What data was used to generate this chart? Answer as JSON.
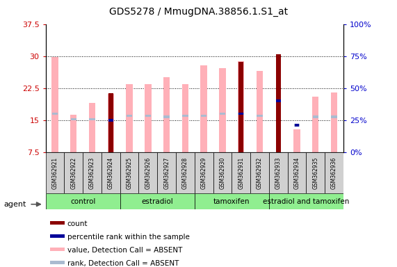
{
  "title": "GDS5278 / MmugDNA.38856.1.S1_at",
  "samples": [
    "GSM362921",
    "GSM362922",
    "GSM362923",
    "GSM362924",
    "GSM362925",
    "GSM362926",
    "GSM362927",
    "GSM362928",
    "GSM362929",
    "GSM362930",
    "GSM362931",
    "GSM362932",
    "GSM362933",
    "GSM362934",
    "GSM362935",
    "GSM362936"
  ],
  "group_labels": [
    "control",
    "estradiol",
    "tamoxifen",
    "estradiol and tamoxifen"
  ],
  "group_starts": [
    0,
    4,
    8,
    12
  ],
  "group_ends": [
    3,
    7,
    11,
    15
  ],
  "group_color": "#90EE90",
  "value_bars": [
    29.8,
    16.2,
    19.0,
    21.2,
    23.5,
    23.5,
    25.0,
    23.5,
    27.8,
    27.1,
    28.8,
    26.6,
    99,
    12.8,
    20.5,
    21.5
  ],
  "value_bars_present": [
    false,
    false,
    false,
    false,
    false,
    false,
    false,
    false,
    false,
    false,
    false,
    false,
    false,
    true,
    false,
    false
  ],
  "count_bars": [
    0,
    0,
    0,
    21.3,
    0,
    0,
    0,
    0,
    0,
    0,
    28.7,
    0,
    30.5,
    0,
    0,
    0
  ],
  "rank_bars": [
    16.5,
    15.2,
    15.2,
    99,
    16.0,
    16.0,
    15.8,
    16.0,
    16.0,
    16.5,
    16.5,
    16.0,
    99,
    13.8,
    15.8,
    15.8
  ],
  "rank_present": [
    true,
    true,
    true,
    false,
    true,
    true,
    true,
    true,
    true,
    true,
    true,
    true,
    false,
    true,
    true,
    true
  ],
  "percentile_bars": [
    0,
    0,
    0,
    15.0,
    0,
    0,
    0,
    0,
    0,
    0,
    16.5,
    0,
    19.5,
    13.8,
    0,
    0
  ],
  "ylim_left": [
    7.5,
    37.5
  ],
  "ylim_right": [
    0,
    100
  ],
  "left_ticks": [
    7.5,
    15.0,
    22.5,
    30.0,
    37.5
  ],
  "right_ticks": [
    0,
    25,
    50,
    75,
    100
  ],
  "value_color": "#FFB0B8",
  "count_color": "#8B0000",
  "rank_color": "#AABBD0",
  "percentile_color": "#000099",
  "bg_color": "#FFFFFF",
  "left_label_color": "#CC0000",
  "right_label_color": "#0000CC",
  "sample_box_color": "#D0D0D0",
  "legend_items": [
    {
      "color": "#8B0000",
      "label": "count"
    },
    {
      "color": "#000099",
      "label": "percentile rank within the sample"
    },
    {
      "color": "#FFB0B8",
      "label": "value, Detection Call = ABSENT"
    },
    {
      "color": "#AABBD0",
      "label": "rank, Detection Call = ABSENT"
    }
  ]
}
